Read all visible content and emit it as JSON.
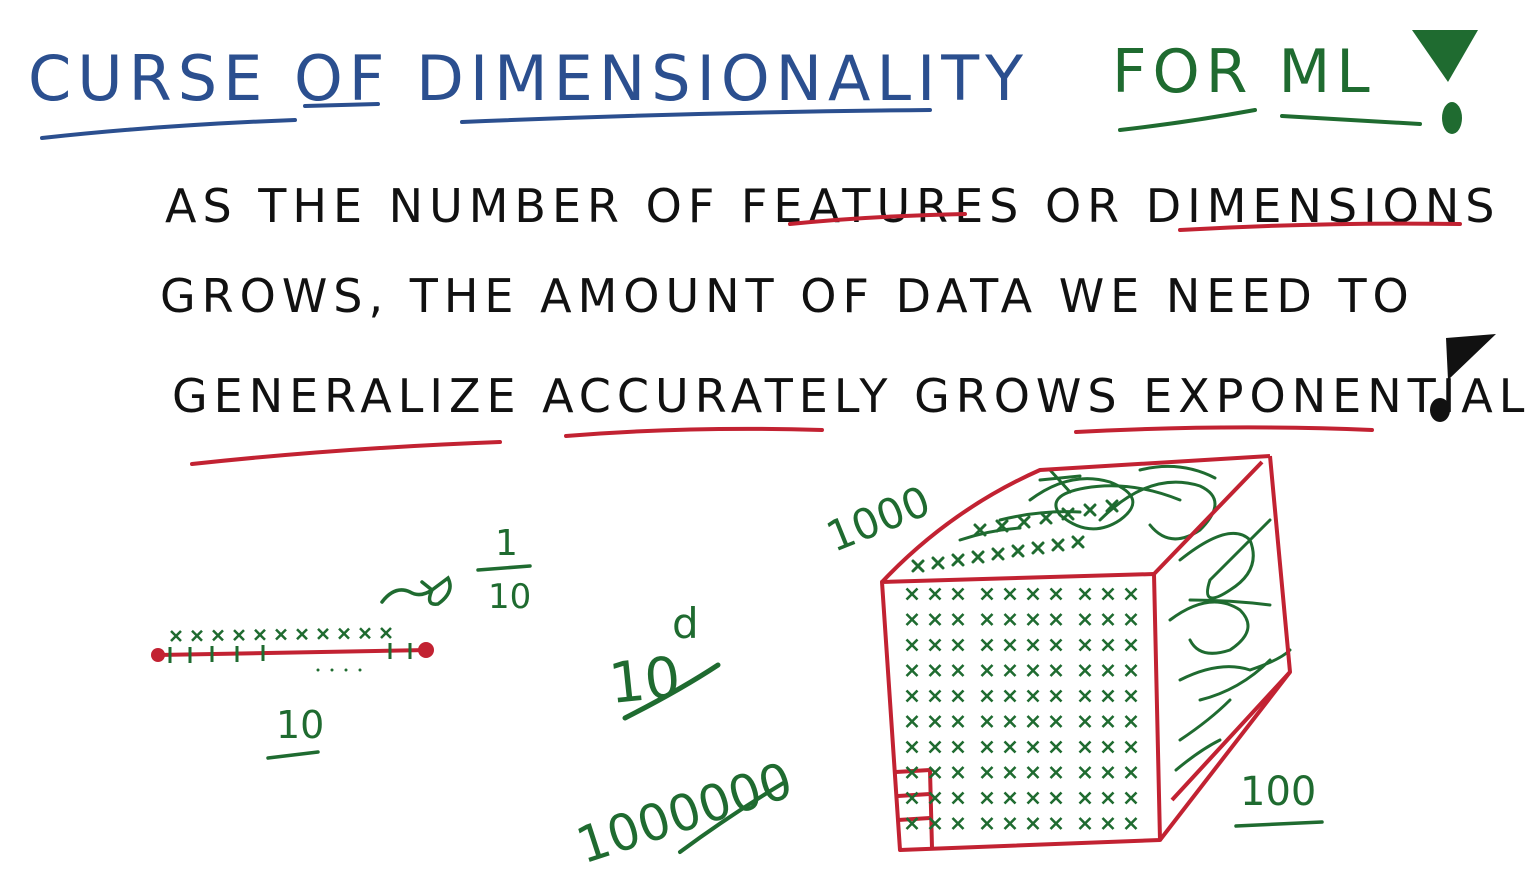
{
  "title": {
    "part1": "CURSE OF DIMENSIONALITY",
    "part2": "FOR ML",
    "bang": "!"
  },
  "definition": {
    "line1": "AS THE NUMBER OF FEATURES OR DIMENSIONS",
    "line2": "GROWS, THE AMOUNT OF DATA WE NEED TO",
    "line3": "GENERALIZE ACCURATELY GROWS EXPONENTIALLY",
    "bang": "!"
  },
  "line_example": {
    "count": "10",
    "fraction_numerator": "1",
    "fraction_denominator": "10"
  },
  "formula": {
    "base": "10",
    "exponent": "d",
    "result": "1000000"
  },
  "cube": {
    "top_label": "1000",
    "side_label": "100"
  },
  "colors": {
    "blue": "#2b4f8f",
    "green": "#1f6b30",
    "red": "#c22232",
    "black": "#111111"
  }
}
